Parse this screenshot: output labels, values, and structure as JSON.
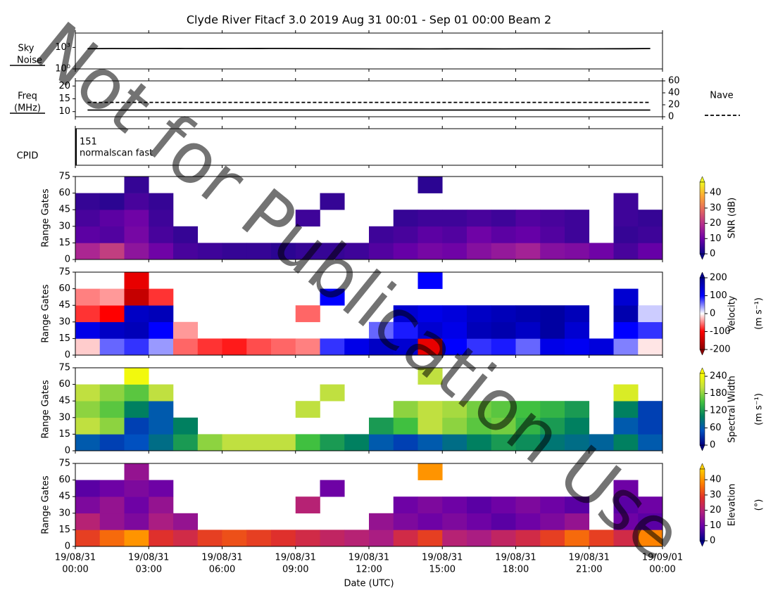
{
  "title": "Clyde River Fitacf 3.0 2019 Aug 31 00:01 - Sep 01 00:00  Beam 2",
  "watermark": "Not for Publication Use",
  "chart_data": [
    {
      "type": "line",
      "ylabel": [
        "Sky",
        "Noise"
      ],
      "log": true,
      "xlim": [
        0,
        24
      ],
      "ylim": [
        1,
        100000
      ],
      "yticks": [
        {
          "value": 1,
          "label": "10⁰"
        },
        {
          "value": 1000,
          "label": "10³"
        }
      ],
      "x": [
        0.5,
        1.5,
        2.5,
        3.5,
        4.5,
        5.5,
        6.5,
        7.5,
        8.5,
        9.5,
        10.5,
        11.5,
        12.5,
        13.5,
        14.5,
        15.5,
        16.5,
        17.5,
        18.5,
        19.5,
        20.5,
        21.5,
        22.5,
        23.5
      ],
      "series": [
        {
          "color": "#000000",
          "values": [
            650,
            700,
            680,
            720,
            700,
            690,
            700,
            710,
            720,
            700,
            680,
            650,
            640,
            630,
            620,
            640,
            630,
            620,
            640,
            630,
            620,
            640,
            650,
            700
          ]
        }
      ]
    },
    {
      "type": "line",
      "ylabel": [
        "Freq",
        "(MHz)"
      ],
      "xlim": [
        0,
        24
      ],
      "ylim": [
        8,
        22
      ],
      "yticks": [
        10,
        15,
        20
      ],
      "y2lim": [
        0,
        60
      ],
      "y2ticks": [
        0,
        20,
        40,
        60
      ],
      "x": [
        0.5,
        1.5,
        2.5,
        3.5,
        4.5,
        5.5,
        6.5,
        7.5,
        8.5,
        9.5,
        10.5,
        11.5,
        12.5,
        13.5,
        14.5,
        15.5,
        16.5,
        17.5,
        18.5,
        19.5,
        20.5,
        21.5,
        22.5,
        23.5
      ],
      "series": [
        {
          "color": "#000000",
          "values": [
            10.6,
            10.6,
            10.6,
            10.6,
            10.6,
            10.6,
            10.6,
            10.6,
            10.6,
            10.6,
            10.6,
            10.6,
            10.6,
            10.6,
            10.6,
            10.6,
            10.6,
            10.6,
            10.6,
            10.6,
            10.6,
            10.6,
            10.6,
            10.6
          ]
        },
        {
          "name": "Nave",
          "color": "#000000",
          "dash": true,
          "axis": "y2",
          "values": [
            24,
            24,
            24,
            24,
            24,
            24,
            24,
            24,
            24,
            24,
            24,
            24,
            24,
            24,
            24,
            24,
            24,
            24,
            24,
            24,
            24,
            24,
            24,
            24
          ]
        }
      ]
    },
    {
      "type": "text",
      "ylabel": "CPID",
      "texts": [
        "151",
        "normalscan fast"
      ]
    },
    {
      "type": "heatmap",
      "ylabel": "Range Gates",
      "xlim": [
        0,
        24
      ],
      "ylim": [
        0,
        75
      ],
      "yticks": [
        0,
        15,
        30,
        45,
        60,
        75
      ],
      "x_bins": [
        0,
        1,
        2,
        3,
        4,
        5,
        6,
        7,
        8,
        9,
        10,
        11,
        12,
        13,
        14,
        15,
        16,
        17,
        18,
        19,
        20,
        21,
        22,
        23,
        24
      ],
      "y_bins": [
        0,
        15,
        30,
        45,
        60,
        75
      ],
      "z": [
        [
          18,
          22,
          14,
          10,
          6,
          5,
          4,
          4,
          3,
          4,
          4,
          5,
          7,
          9,
          11,
          10,
          13,
          15,
          17,
          13,
          12,
          10,
          6,
          9
        ],
        [
          8,
          7,
          11,
          6,
          4,
          null,
          null,
          null,
          null,
          null,
          null,
          null,
          5,
          6,
          8,
          7,
          10,
          8,
          9,
          7,
          5,
          null,
          4,
          5
        ],
        [
          6,
          8,
          10,
          5,
          null,
          null,
          null,
          null,
          null,
          5,
          null,
          null,
          null,
          4,
          5,
          5,
          6,
          5,
          7,
          6,
          5,
          null,
          5,
          4
        ],
        [
          4,
          3,
          6,
          4,
          null,
          null,
          null,
          null,
          null,
          null,
          4,
          null,
          null,
          null,
          null,
          null,
          null,
          null,
          null,
          null,
          null,
          null,
          5,
          null
        ],
        [
          null,
          null,
          4,
          null,
          null,
          null,
          null,
          null,
          null,
          null,
          null,
          null,
          null,
          null,
          3,
          null,
          null,
          null,
          null,
          null,
          null,
          null,
          null,
          null
        ]
      ],
      "clim": [
        0,
        47
      ],
      "cticks": [
        0,
        10,
        20,
        30,
        40
      ],
      "cbar_label": [
        "SNR (dB)"
      ],
      "colors": [
        "#0d0887",
        "#6a00a8",
        "#b12a90",
        "#e16462",
        "#fca636",
        "#f0f921"
      ]
    },
    {
      "type": "heatmap",
      "ylabel": "Range Gates",
      "xlim": [
        0,
        24
      ],
      "ylim": [
        0,
        75
      ],
      "yticks": [
        0,
        15,
        30,
        45,
        60,
        75
      ],
      "x_bins": [
        0,
        1,
        2,
        3,
        4,
        5,
        6,
        7,
        8,
        9,
        10,
        11,
        12,
        13,
        14,
        15,
        16,
        17,
        18,
        19,
        20,
        21,
        22,
        23,
        24
      ],
      "y_bins": [
        0,
        15,
        30,
        45,
        60,
        75
      ],
      "z": [
        [
          -20,
          60,
          80,
          40,
          -60,
          -80,
          -90,
          -70,
          -60,
          -50,
          80,
          120,
          150,
          140,
          -120,
          100,
          80,
          90,
          60,
          120,
          110,
          130,
          50,
          -10
        ],
        [
          120,
          150,
          160,
          100,
          -40,
          null,
          null,
          null,
          null,
          null,
          null,
          null,
          60,
          90,
          140,
          120,
          160,
          170,
          150,
          180,
          140,
          null,
          100,
          80
        ],
        [
          -80,
          -100,
          150,
          160,
          null,
          null,
          null,
          null,
          null,
          -60,
          null,
          null,
          null,
          140,
          120,
          130,
          150,
          160,
          170,
          180,
          160,
          null,
          170,
          20
        ],
        [
          -50,
          -40,
          -150,
          -80,
          null,
          null,
          null,
          null,
          null,
          null,
          100,
          null,
          null,
          null,
          null,
          null,
          null,
          null,
          null,
          null,
          null,
          null,
          140,
          null
        ],
        [
          null,
          null,
          -120,
          null,
          null,
          null,
          null,
          null,
          null,
          null,
          null,
          null,
          null,
          null,
          100,
          null,
          null,
          null,
          null,
          null,
          null,
          null,
          null,
          null
        ]
      ],
      "clim": [
        -200,
        200
      ],
      "cticks": [
        -200,
        -100,
        0,
        100,
        200
      ],
      "cbar_label": [
        "Velocity",
        "(m s⁻¹)"
      ],
      "colors": [
        "#8b0000",
        "#ff0000",
        "#ffffff",
        "#0000ff",
        "#00008b"
      ]
    },
    {
      "type": "heatmap",
      "ylabel": "Range Gates",
      "xlim": [
        0,
        24
      ],
      "ylim": [
        0,
        75
      ],
      "yticks": [
        0,
        15,
        30,
        45,
        60,
        75
      ],
      "x_bins": [
        0,
        1,
        2,
        3,
        4,
        5,
        6,
        7,
        8,
        9,
        10,
        11,
        12,
        13,
        14,
        15,
        16,
        17,
        18,
        19,
        20,
        21,
        22,
        23,
        24
      ],
      "y_bins": [
        0,
        15,
        30,
        45,
        60,
        75
      ],
      "z": [
        [
          60,
          40,
          50,
          80,
          120,
          180,
          200,
          200,
          200,
          150,
          120,
          100,
          60,
          40,
          60,
          80,
          100,
          120,
          110,
          90,
          80,
          70,
          100,
          60
        ],
        [
          200,
          180,
          40,
          60,
          100,
          null,
          null,
          null,
          null,
          null,
          null,
          null,
          120,
          150,
          200,
          180,
          160,
          170,
          140,
          120,
          100,
          null,
          60,
          40
        ],
        [
          180,
          160,
          100,
          60,
          null,
          null,
          null,
          null,
          null,
          200,
          null,
          null,
          null,
          180,
          200,
          190,
          170,
          160,
          150,
          140,
          120,
          null,
          100,
          40
        ],
        [
          200,
          180,
          160,
          200,
          null,
          null,
          null,
          null,
          null,
          null,
          200,
          null,
          null,
          null,
          null,
          null,
          null,
          null,
          null,
          null,
          null,
          null,
          220,
          null
        ],
        [
          null,
          null,
          240,
          null,
          null,
          null,
          null,
          null,
          null,
          null,
          null,
          null,
          null,
          null,
          200,
          null,
          null,
          null,
          null,
          null,
          null,
          null,
          null,
          null
        ]
      ],
      "clim": [
        0,
        250
      ],
      "cticks": [
        0,
        60,
        120,
        180,
        240
      ],
      "cbar_label": [
        "Spectral Width",
        "(m s⁻¹)"
      ],
      "colors": [
        "#000080",
        "#0050c0",
        "#008060",
        "#40c040",
        "#c0e040",
        "#ffff00"
      ]
    },
    {
      "type": "heatmap",
      "ylabel": "Range Gates",
      "xlim": [
        0,
        24
      ],
      "ylim": [
        0,
        75
      ],
      "yticks": [
        0,
        15,
        30,
        45,
        60,
        75
      ],
      "x_bins": [
        0,
        1,
        2,
        3,
        4,
        5,
        6,
        7,
        8,
        9,
        10,
        11,
        12,
        13,
        14,
        15,
        16,
        17,
        18,
        19,
        20,
        21,
        22,
        23,
        24
      ],
      "y_bins": [
        0,
        15,
        30,
        45,
        60,
        75
      ],
      "z": [
        [
          30,
          35,
          40,
          28,
          25,
          30,
          32,
          30,
          28,
          25,
          22,
          20,
          18,
          25,
          30,
          20,
          18,
          22,
          25,
          30,
          35,
          30,
          25,
          38
        ],
        [
          20,
          15,
          12,
          18,
          15,
          null,
          null,
          null,
          null,
          null,
          null,
          null,
          15,
          12,
          10,
          12,
          10,
          8,
          10,
          12,
          15,
          null,
          10,
          8
        ],
        [
          12,
          15,
          10,
          15,
          null,
          null,
          null,
          null,
          null,
          20,
          null,
          null,
          null,
          10,
          12,
          10,
          8,
          10,
          12,
          10,
          8,
          null,
          8,
          10
        ],
        [
          8,
          10,
          12,
          10,
          null,
          null,
          null,
          null,
          null,
          null,
          10,
          null,
          null,
          null,
          null,
          null,
          null,
          null,
          null,
          null,
          null,
          null,
          10,
          null
        ],
        [
          null,
          null,
          15,
          null,
          null,
          null,
          null,
          null,
          null,
          null,
          null,
          null,
          null,
          null,
          40,
          null,
          null,
          null,
          null,
          null,
          null,
          null,
          null,
          null
        ]
      ],
      "clim": [
        0,
        47
      ],
      "cticks": [
        0,
        10,
        20,
        30,
        40
      ],
      "cbar_label": [
        "Elevation",
        "(°)"
      ],
      "colors": [
        "#00008b",
        "#6a00a8",
        "#b0207f",
        "#e0302a",
        "#ff8000",
        "#ffd000"
      ],
      "xlabel": "Date (UTC)",
      "xticks": [
        {
          "value": 0,
          "label": [
            "19/08/31",
            "00:00"
          ]
        },
        {
          "value": 3,
          "label": [
            "19/08/31",
            "03:00"
          ]
        },
        {
          "value": 6,
          "label": [
            "19/08/31",
            "06:00"
          ]
        },
        {
          "value": 9,
          "label": [
            "19/08/31",
            "09:00"
          ]
        },
        {
          "value": 12,
          "label": [
            "19/08/31",
            "12:00"
          ]
        },
        {
          "value": 15,
          "label": [
            "19/08/31",
            "15:00"
          ]
        },
        {
          "value": 18,
          "label": [
            "19/08/31",
            "18:00"
          ]
        },
        {
          "value": 21,
          "label": [
            "19/08/31",
            "21:00"
          ]
        },
        {
          "value": 24,
          "label": [
            "19/09/01",
            "00:00"
          ]
        }
      ]
    }
  ]
}
